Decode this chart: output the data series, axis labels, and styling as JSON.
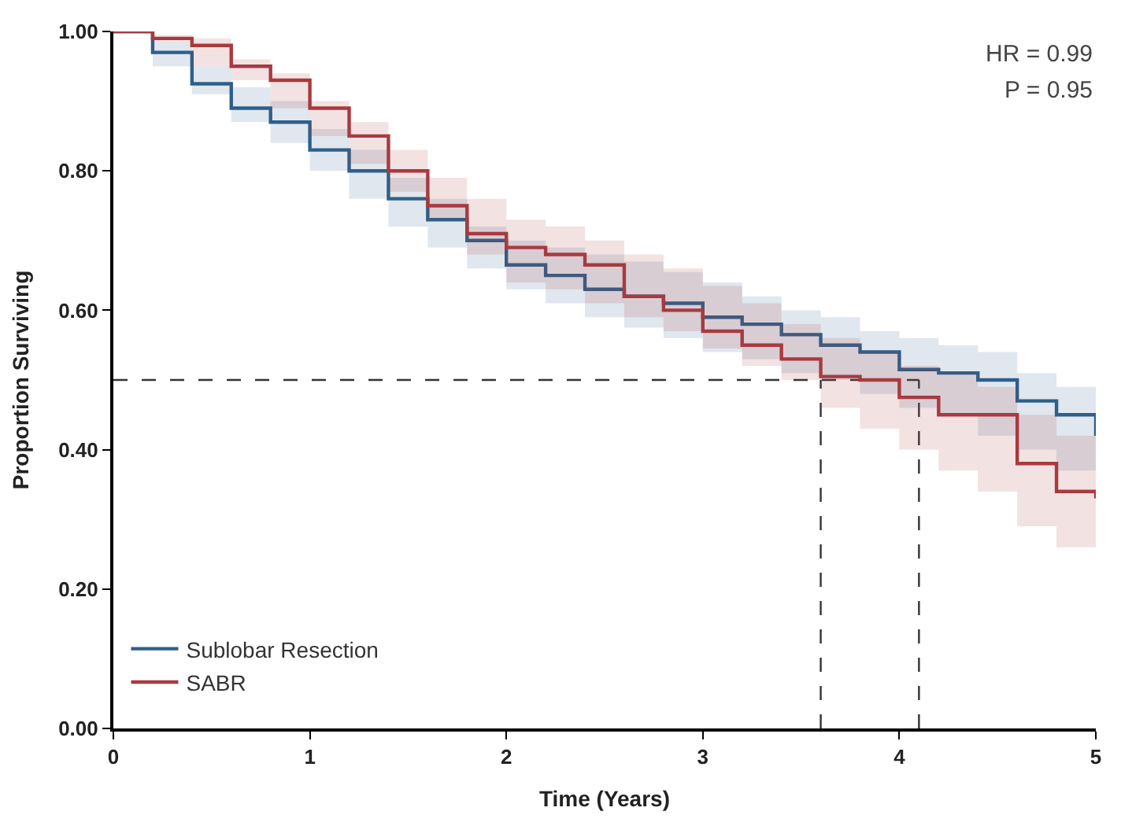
{
  "chart_data": {
    "type": "step",
    "xlabel": "Time (Years)",
    "ylabel": "Proportion Surviving",
    "x": [
      0,
      0.2,
      0.4,
      0.6,
      0.8,
      1.0,
      1.2,
      1.4,
      1.6,
      1.8,
      2.0,
      2.2,
      2.4,
      2.6,
      2.8,
      3.0,
      3.2,
      3.4,
      3.6,
      3.8,
      4.0,
      4.2,
      4.4,
      4.6,
      4.8,
      5.0
    ],
    "series": [
      {
        "name": "Sublobar Resection",
        "color": "#2e5f8a",
        "values": [
          1.0,
          0.97,
          0.925,
          0.89,
          0.87,
          0.83,
          0.8,
          0.76,
          0.73,
          0.7,
          0.665,
          0.65,
          0.63,
          0.62,
          0.61,
          0.59,
          0.58,
          0.565,
          0.55,
          0.54,
          0.515,
          0.51,
          0.5,
          0.47,
          0.45,
          0.42
        ],
        "lower": [
          1.0,
          0.95,
          0.91,
          0.87,
          0.84,
          0.8,
          0.76,
          0.72,
          0.69,
          0.66,
          0.63,
          0.61,
          0.59,
          0.575,
          0.56,
          0.54,
          0.53,
          0.51,
          0.5,
          0.48,
          0.46,
          0.45,
          0.42,
          0.4,
          0.37,
          0.36
        ],
        "upper": [
          1.0,
          0.985,
          0.95,
          0.92,
          0.9,
          0.86,
          0.83,
          0.79,
          0.76,
          0.72,
          0.7,
          0.69,
          0.68,
          0.67,
          0.655,
          0.64,
          0.62,
          0.6,
          0.59,
          0.57,
          0.56,
          0.55,
          0.54,
          0.51,
          0.49,
          0.47
        ]
      },
      {
        "name": "SABR",
        "color": "#a83a3f",
        "values": [
          1.0,
          0.99,
          0.98,
          0.95,
          0.93,
          0.89,
          0.85,
          0.8,
          0.75,
          0.71,
          0.69,
          0.68,
          0.665,
          0.62,
          0.6,
          0.57,
          0.55,
          0.53,
          0.505,
          0.5,
          0.475,
          0.45,
          0.45,
          0.38,
          0.34,
          0.33
        ],
        "lower": [
          1.0,
          0.985,
          0.95,
          0.93,
          0.89,
          0.85,
          0.81,
          0.77,
          0.73,
          0.68,
          0.64,
          0.63,
          0.61,
          0.59,
          0.57,
          0.545,
          0.52,
          0.5,
          0.46,
          0.43,
          0.4,
          0.37,
          0.34,
          0.29,
          0.26,
          0.25
        ],
        "upper": [
          1.0,
          0.995,
          0.99,
          0.96,
          0.94,
          0.9,
          0.87,
          0.83,
          0.79,
          0.76,
          0.73,
          0.72,
          0.7,
          0.68,
          0.66,
          0.635,
          0.61,
          0.58,
          0.56,
          0.54,
          0.52,
          0.51,
          0.49,
          0.45,
          0.42,
          0.4
        ]
      }
    ],
    "xlim": [
      0,
      5
    ],
    "xticks": [
      0,
      1,
      2,
      3,
      4,
      5
    ],
    "ylim": [
      0,
      1
    ],
    "yticks": [
      {
        "value": 0,
        "label": "0.00"
      },
      {
        "value": 0.2,
        "label": "0.20"
      },
      {
        "value": 0.4,
        "label": "0.40"
      },
      {
        "value": 0.6,
        "label": "0.60"
      },
      {
        "value": 0.8,
        "label": "0.80"
      },
      {
        "value": 1,
        "label": "1.00"
      }
    ],
    "ref_lines": [
      {
        "axis": "y",
        "value": 0.5,
        "color": "#333333",
        "line_style": "dashed"
      },
      {
        "axis": "x",
        "value": 3.6,
        "color": "#333333",
        "line_style": "dashed"
      },
      {
        "axis": "x",
        "value": 4.1,
        "color": "#333333",
        "line_style": "dashed"
      }
    ],
    "annotations": [
      "HR = 0.99",
      "P = 0.95"
    ],
    "grid": false,
    "legend": "bottom left",
    "marker": "none",
    "line_style": "solid"
  }
}
